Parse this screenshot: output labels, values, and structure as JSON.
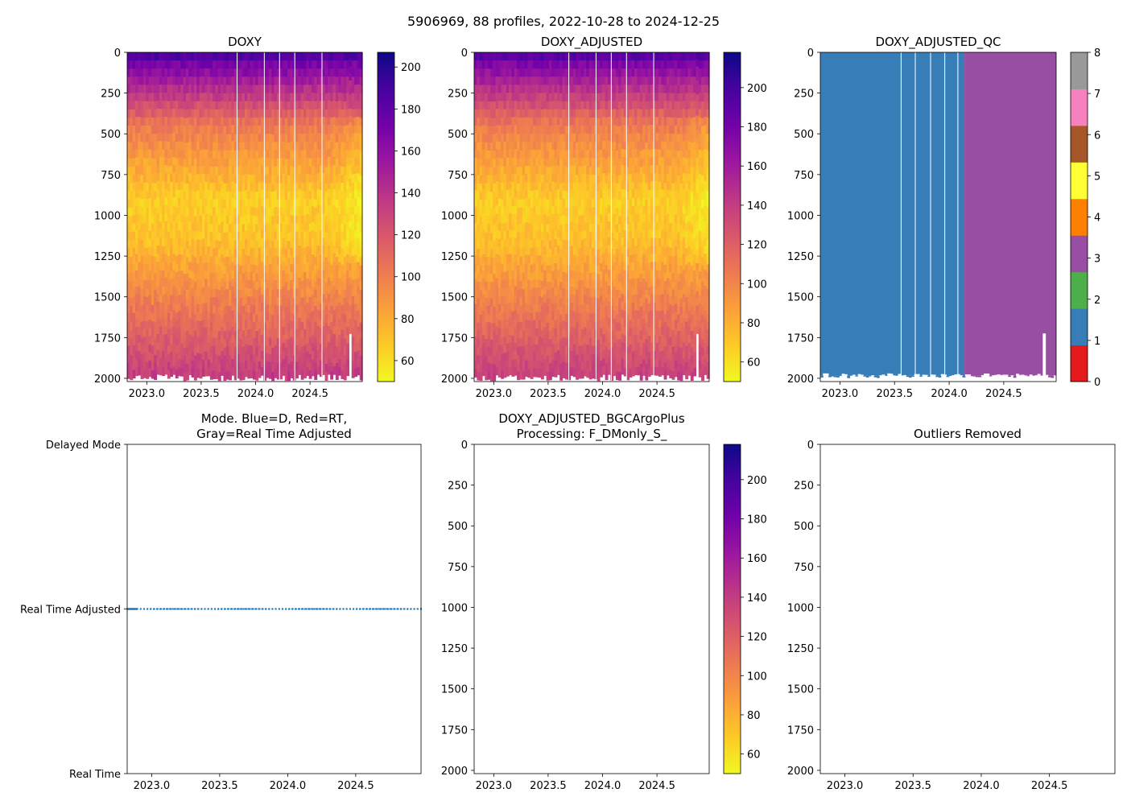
{
  "suptitle": "5906969, 88 profiles, 2022-10-28 to 2024-12-25",
  "colors": {
    "plasma": [
      "#0d0887",
      "#46039f",
      "#7201a8",
      "#9c179e",
      "#bd3786",
      "#d8576b",
      "#ed7953",
      "#fb9f3a",
      "#fdca26",
      "#f0f921"
    ],
    "qc": [
      "#e41a1c",
      "#377eb8",
      "#4daf4a",
      "#984ea3",
      "#ff7f00",
      "#ffff33",
      "#a65628",
      "#f781bf",
      "#999999"
    ],
    "mode_line": "#1f77b4"
  },
  "chart_data": [
    {
      "id": "doxy",
      "type": "heatmap",
      "title": "DOXY",
      "xlim": [
        2022.82,
        2024.98
      ],
      "ylim": [
        2020,
        0
      ],
      "x_ticks": [
        "2023.0",
        "2023.5",
        "2024.0",
        "2024.5"
      ],
      "y_ticks": [
        "0",
        "250",
        "500",
        "750",
        "1000",
        "1250",
        "1500",
        "1750",
        "2000"
      ],
      "colorbar": {
        "range": [
          50,
          207
        ],
        "ticks": [
          "60",
          "80",
          "100",
          "120",
          "140",
          "160",
          "180",
          "200"
        ]
      },
      "gaps_x": [
        2023.83,
        2024.08,
        2024.22,
        2024.36,
        2024.61
      ],
      "description": "oxygen high near surface (~200), minimum ~55 around 800-1100 dbar, increasing to ~140 near 2000 dbar"
    },
    {
      "id": "doxy_adjusted",
      "type": "heatmap",
      "title": "DOXY_ADJUSTED",
      "xlim": [
        2022.82,
        2024.98
      ],
      "ylim": [
        2020,
        0
      ],
      "x_ticks": [
        "2023.0",
        "2023.5",
        "2024.0",
        "2024.5"
      ],
      "y_ticks": [
        "0",
        "250",
        "500",
        "750",
        "1000",
        "1250",
        "1500",
        "1750",
        "2000"
      ],
      "colorbar": {
        "range": [
          50,
          218
        ],
        "ticks": [
          "60",
          "80",
          "100",
          "120",
          "140",
          "160",
          "180",
          "200"
        ]
      },
      "gaps_x": [
        2023.69,
        2023.94,
        2024.08,
        2024.22,
        2024.47
      ]
    },
    {
      "id": "doxy_adjusted_qc",
      "type": "heatmap",
      "title": "DOXY_ADJUSTED_QC",
      "xlim": [
        2022.82,
        2024.98
      ],
      "ylim": [
        2020,
        0
      ],
      "x_ticks": [
        "2023.0",
        "2023.5",
        "2024.0",
        "2024.5"
      ],
      "y_ticks": [
        "0",
        "250",
        "500",
        "750",
        "1000",
        "1250",
        "1500",
        "1750",
        "2000"
      ],
      "qc_segments": [
        {
          "x0": 2022.82,
          "x1": 2024.14,
          "flag": 1
        },
        {
          "x0": 2024.14,
          "x1": 2024.98,
          "flag": 3
        }
      ],
      "gaps_x": [
        2023.56,
        2023.69,
        2023.83,
        2023.96,
        2024.08
      ],
      "colorbar": {
        "range": [
          0,
          8
        ],
        "ticks": [
          "0",
          "1",
          "2",
          "3",
          "4",
          "5",
          "6",
          "7",
          "8"
        ]
      }
    },
    {
      "id": "mode",
      "type": "line",
      "title_lines": [
        "Mode. Blue=D, Red=RT,",
        "Gray=Real Time Adjusted"
      ],
      "xlim": [
        2022.82,
        2024.98
      ],
      "x_ticks": [
        "2023.0",
        "2023.5",
        "2024.0",
        "2024.5"
      ],
      "y_ticks": [
        "Real Time",
        "Real Time Adjusted",
        "Delayed Mode"
      ],
      "ylim": [
        0,
        2
      ],
      "series": [
        {
          "name": "mode",
          "x_range": [
            2022.82,
            2024.98
          ],
          "y": 1,
          "n_points": 88,
          "style": "dotted"
        }
      ]
    },
    {
      "id": "doxy_bgc",
      "type": "heatmap",
      "title_lines": [
        "DOXY_ADJUSTED_BGCArgoPlus",
        "Processing: F_DMonly_S_"
      ],
      "xlim": [
        2022.82,
        2024.98
      ],
      "ylim": [
        2020,
        0
      ],
      "x_ticks": [
        "2023.0",
        "2023.5",
        "2024.0",
        "2024.5"
      ],
      "y_ticks": [
        "0",
        "250",
        "500",
        "750",
        "1000",
        "1250",
        "1500",
        "1750",
        "2000"
      ],
      "colorbar": {
        "range": [
          50,
          218
        ],
        "ticks": [
          "60",
          "80",
          "100",
          "120",
          "140",
          "160",
          "180",
          "200"
        ]
      },
      "empty": true
    },
    {
      "id": "outliers",
      "type": "scatter",
      "title": "Outliers Removed",
      "xlim": [
        2022.82,
        2024.98
      ],
      "ylim": [
        2020,
        0
      ],
      "x_ticks": [
        "2023.0",
        "2023.5",
        "2024.0",
        "2024.5"
      ],
      "y_ticks": [
        "0",
        "250",
        "500",
        "750",
        "1000",
        "1250",
        "1500",
        "1750",
        "2000"
      ],
      "empty": true
    }
  ]
}
